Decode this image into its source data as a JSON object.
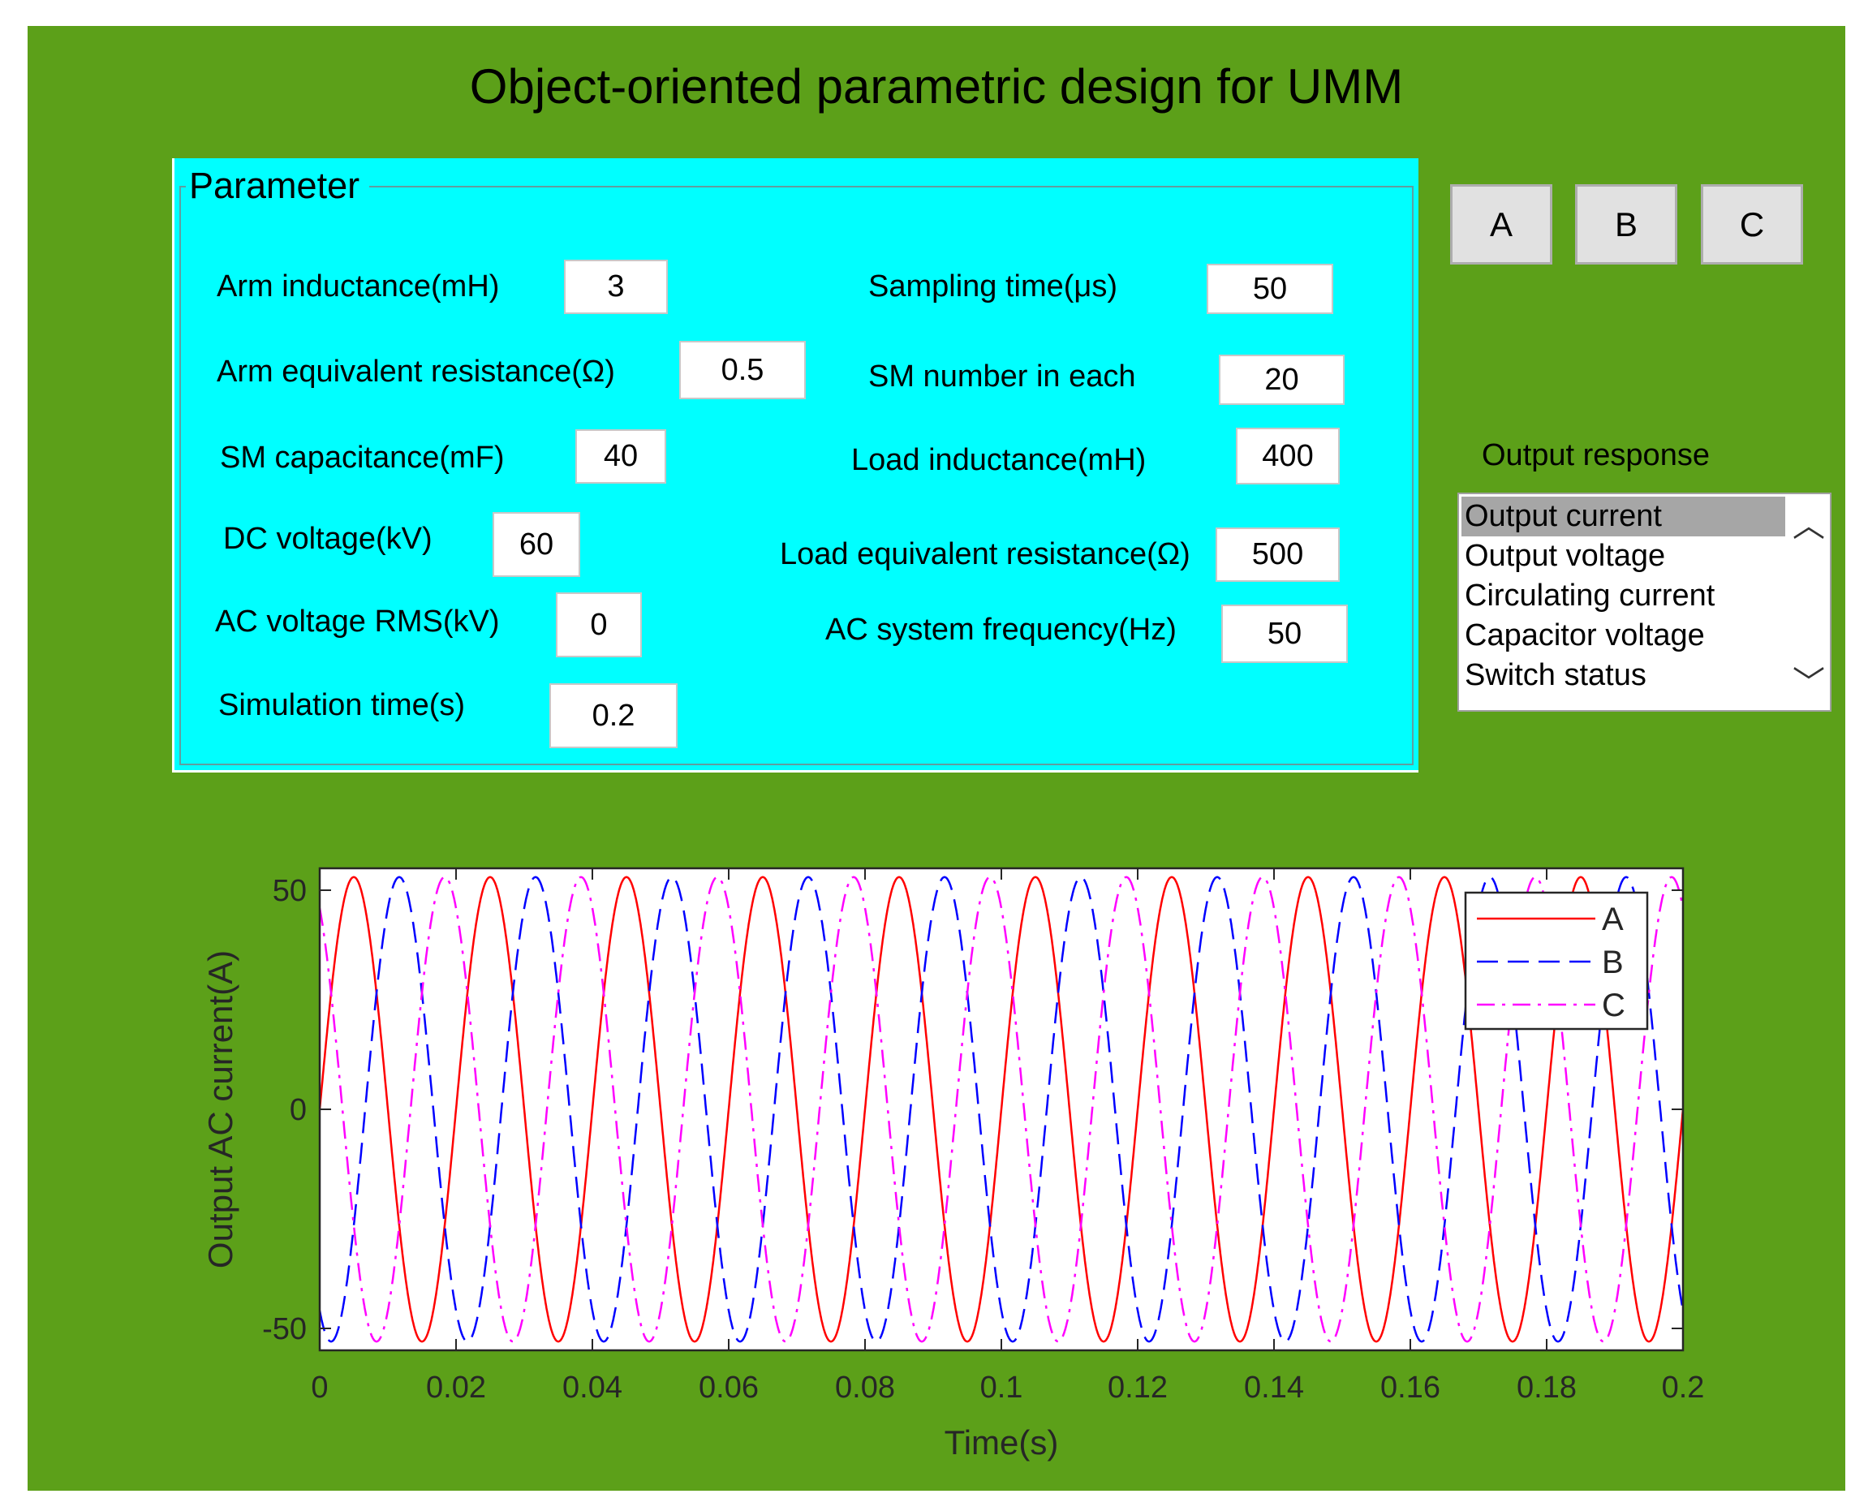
{
  "window": {
    "title": "Object-oriented parametric design for UMM",
    "background": "#5ca019"
  },
  "parameter_panel": {
    "legend": "Parameter",
    "fields": [
      {
        "label": "Arm inductance(mH)",
        "value": "3"
      },
      {
        "label": "Arm equivalent resistance(Ω)",
        "value": "0.5"
      },
      {
        "label": "SM capacitance(mF)",
        "value": "40"
      },
      {
        "label": "DC voltage(kV)",
        "value": "60"
      },
      {
        "label": "AC voltage RMS(kV)",
        "value": "0"
      },
      {
        "label": "Simulation time(s)",
        "value": "0.2"
      },
      {
        "label": "Sampling time(μs)",
        "value": "50"
      },
      {
        "label": "SM number in each",
        "value": "20"
      },
      {
        "label": "Load inductance(mH)",
        "value": "400"
      },
      {
        "label": "Load equivalent resistance(Ω)",
        "value": "500"
      },
      {
        "label": "AC system frequency(Hz)",
        "value": "50"
      }
    ]
  },
  "phase_buttons": [
    "A",
    "B",
    "C"
  ],
  "output_response": {
    "label": "Output response",
    "items": [
      "Output current",
      "Output voltage",
      "Circulating current",
      "Capacitor voltage",
      "Switch status"
    ],
    "selected": "Output current",
    "scroll_up_icon": "chevron-up-icon",
    "scroll_down_icon": "chevron-down-icon"
  },
  "chart_data": {
    "type": "line",
    "xlabel": "Time(s)",
    "ylabel": "Output AC current(A)",
    "xlim": [
      0,
      0.2
    ],
    "ylim": [
      -55,
      55
    ],
    "xticks": [
      0,
      0.02,
      0.04,
      0.06,
      0.08,
      0.1,
      0.12,
      0.14,
      0.16,
      0.18,
      0.2
    ],
    "xtick_labels": [
      "0",
      "0.02",
      "0.04",
      "0.06",
      "0.08",
      "0.1",
      "0.12",
      "0.14",
      "0.16",
      "0.18",
      "0.2"
    ],
    "yticks": [
      -50,
      0,
      50
    ],
    "ytick_labels": [
      "-50",
      "0",
      "50"
    ],
    "grid": false,
    "legend_position": "top-right",
    "amplitude": 53,
    "frequency_hz": 50,
    "series": [
      {
        "name": "A",
        "color": "#ff0000",
        "style": "solid",
        "phase_deg": 0
      },
      {
        "name": "B",
        "color": "#0000ff",
        "style": "dashed",
        "phase_deg": -120
      },
      {
        "name": "C",
        "color": "#ff00ff",
        "style": "dashdot",
        "phase_deg": 120
      }
    ]
  }
}
